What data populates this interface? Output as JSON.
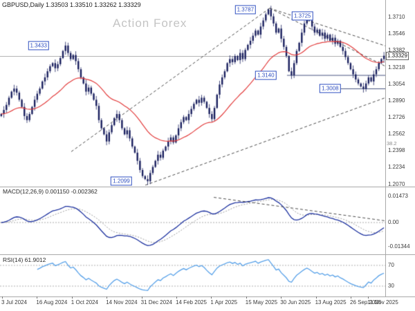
{
  "header": {
    "symbol_line": "GBPUSD,Daily 1.33503 1.33510 1.33262 1.33329"
  },
  "watermark": "Action Forex",
  "panels": {
    "macd": {
      "label": "MACD(12,26,9) 0.001150 -0.002362",
      "axis_labels": [
        {
          "v": 0.01473,
          "text": "0.01473"
        },
        {
          "v": 0,
          "text": "0.00"
        },
        {
          "v": -0.01344,
          "text": "-0.01344"
        }
      ]
    },
    "rsi": {
      "label": "RSI(14) 61.9012",
      "axis_labels": [
        {
          "v": 70,
          "text": "70"
        },
        {
          "v": 30,
          "text": "30"
        }
      ]
    }
  },
  "axes": {
    "price_labels": [
      "1.3710",
      "1.3546",
      "1.3382",
      "1.3218",
      "1.3054",
      "1.2890",
      "1.2726",
      "1.2562",
      "1.2398",
      "1.2234",
      "1.2070"
    ],
    "fib_label": "38.2",
    "current_price": "1.33329",
    "time_labels": [
      "3 Jul 2024",
      "16 Aug 2024",
      "1 Oct 2024",
      "14 Nov 2024",
      "31 Dec 2024",
      "14 Feb 2025",
      "1 Apr 2025",
      "15 May 2025",
      "30 Jun 2025",
      "13 Aug 2025",
      "26 Sep 2025",
      "11 Nov 2025"
    ]
  },
  "chart_data": {
    "type": "candlestick",
    "symbol": "GBPUSD",
    "timeframe": "Daily",
    "ohlc_header": {
      "open": 1.33503,
      "high": 1.3351,
      "low": 1.33262,
      "close": 1.33329
    },
    "price_range": {
      "top": 1.384,
      "bottom": 1.206
    },
    "current_price": 1.3333,
    "closes": [
      1.276,
      1.28,
      1.285,
      1.292,
      1.298,
      1.301,
      1.297,
      1.29,
      1.283,
      1.274,
      1.27,
      1.276,
      1.283,
      1.29,
      1.296,
      1.301,
      1.308,
      1.312,
      1.318,
      1.323,
      1.326,
      1.321,
      1.325,
      1.331,
      1.338,
      1.3433,
      1.336,
      1.33,
      1.334,
      1.328,
      1.32,
      1.312,
      1.306,
      1.298,
      1.302,
      1.296,
      1.29,
      1.284,
      1.27,
      1.262,
      1.256,
      1.249,
      1.258,
      1.265,
      1.272,
      1.276,
      1.27,
      1.262,
      1.256,
      1.26,
      1.252,
      1.244,
      1.238,
      1.23,
      1.221,
      1.215,
      1.212,
      1.2099,
      1.218,
      1.224,
      1.23,
      1.236,
      1.233,
      1.24,
      1.244,
      1.249,
      1.253,
      1.248,
      1.255,
      1.262,
      1.268,
      1.273,
      1.27,
      1.276,
      1.281,
      1.286,
      1.29,
      1.287,
      1.292,
      1.288,
      1.282,
      1.276,
      1.271,
      1.282,
      1.295,
      1.305,
      1.312,
      1.318,
      1.326,
      1.33,
      1.327,
      1.333,
      1.329,
      1.336,
      1.33,
      1.339,
      1.344,
      1.348,
      1.353,
      1.358,
      1.354,
      1.362,
      1.368,
      1.374,
      1.3787,
      1.372,
      1.365,
      1.356,
      1.36,
      1.35,
      1.342,
      1.333,
      1.318,
      1.3141,
      1.326,
      1.338,
      1.346,
      1.356,
      1.365,
      1.3725,
      1.368,
      1.362,
      1.356,
      1.359,
      1.353,
      1.356,
      1.35,
      1.354,
      1.348,
      1.351,
      1.345,
      1.348,
      1.342,
      1.338,
      1.332,
      1.326,
      1.32,
      1.315,
      1.31,
      1.306,
      1.303,
      1.3008,
      1.306,
      1.312,
      1.308,
      1.315,
      1.32,
      1.326,
      1.33,
      1.3333
    ],
    "annotations": [
      {
        "text": "1.3433",
        "f": 0.1,
        "price": 1.3433
      },
      {
        "text": "1.3787",
        "f": 0.637,
        "price": 1.3787
      },
      {
        "text": "1.3725",
        "f": 0.785,
        "price": 1.3725
      },
      {
        "text": "1.3140",
        "f": 0.69,
        "price": 1.314
      },
      {
        "text": "1.3008",
        "f": 0.857,
        "price": 1.3008
      },
      {
        "text": "1.2099",
        "f": 0.315,
        "price": 1.2099
      }
    ],
    "levels": [
      {
        "price": 1.314,
        "f0": 0.745,
        "f1": 1.0
      },
      {
        "price": 1.3008,
        "f0": 0.878,
        "f1": 1.0
      }
    ],
    "trendlines": [
      {
        "f0": 0.185,
        "p0": 1.239,
        "f1": 0.7,
        "p1": 1.38
      },
      {
        "f0": 0.377,
        "p0": 1.206,
        "f1": 1.0,
        "p1": 1.292
      },
      {
        "f0": 0.7,
        "p0": 1.38,
        "f1": 1.0,
        "p1": 1.343
      },
      {
        "f0": 0.7,
        "p0": 1.38,
        "f1": 1.0,
        "p1": 1.323
      }
    ],
    "macd_trendline": {
      "x0f": 0.555,
      "y0f": 0.15,
      "x1f": 1.0,
      "y1f": 0.5
    },
    "colors": {
      "candle": "#191f5e",
      "ma": "#e23b3b",
      "macd": "#1a2f9e",
      "signal": "#9b9b9b",
      "rsi": "#56a0e8",
      "trend": "#4a4a4a",
      "level": "#46527e",
      "callout": "#2f4fc0",
      "watermark": "#c4c4c4",
      "current_line": "#b4b4b4"
    }
  }
}
